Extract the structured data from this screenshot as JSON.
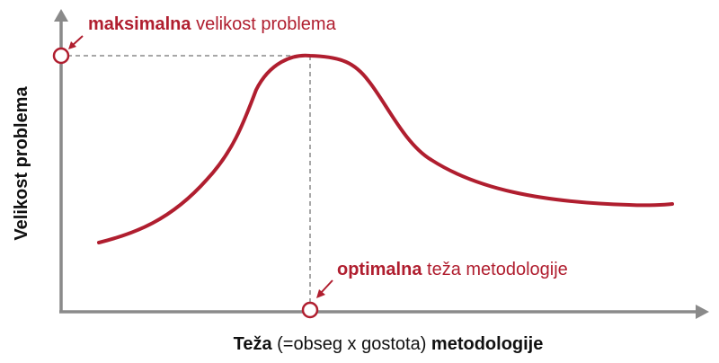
{
  "colors": {
    "curve": "#b01e2f",
    "axis": "#8a8a8a",
    "guide": "#8a8a8a",
    "text_accent": "#b01e2f",
    "text_dark": "#111111"
  },
  "labels": {
    "max": {
      "bold": "maksimalna",
      "rest": " velikost problema"
    },
    "optimal": {
      "bold": "optimalna",
      "rest": " teža metodologije"
    },
    "y_axis": "Velikost problema",
    "x_axis": {
      "bold1": "Teža",
      "mid": " (=obseg x gostota) ",
      "bold2": "metodologije"
    }
  }
}
